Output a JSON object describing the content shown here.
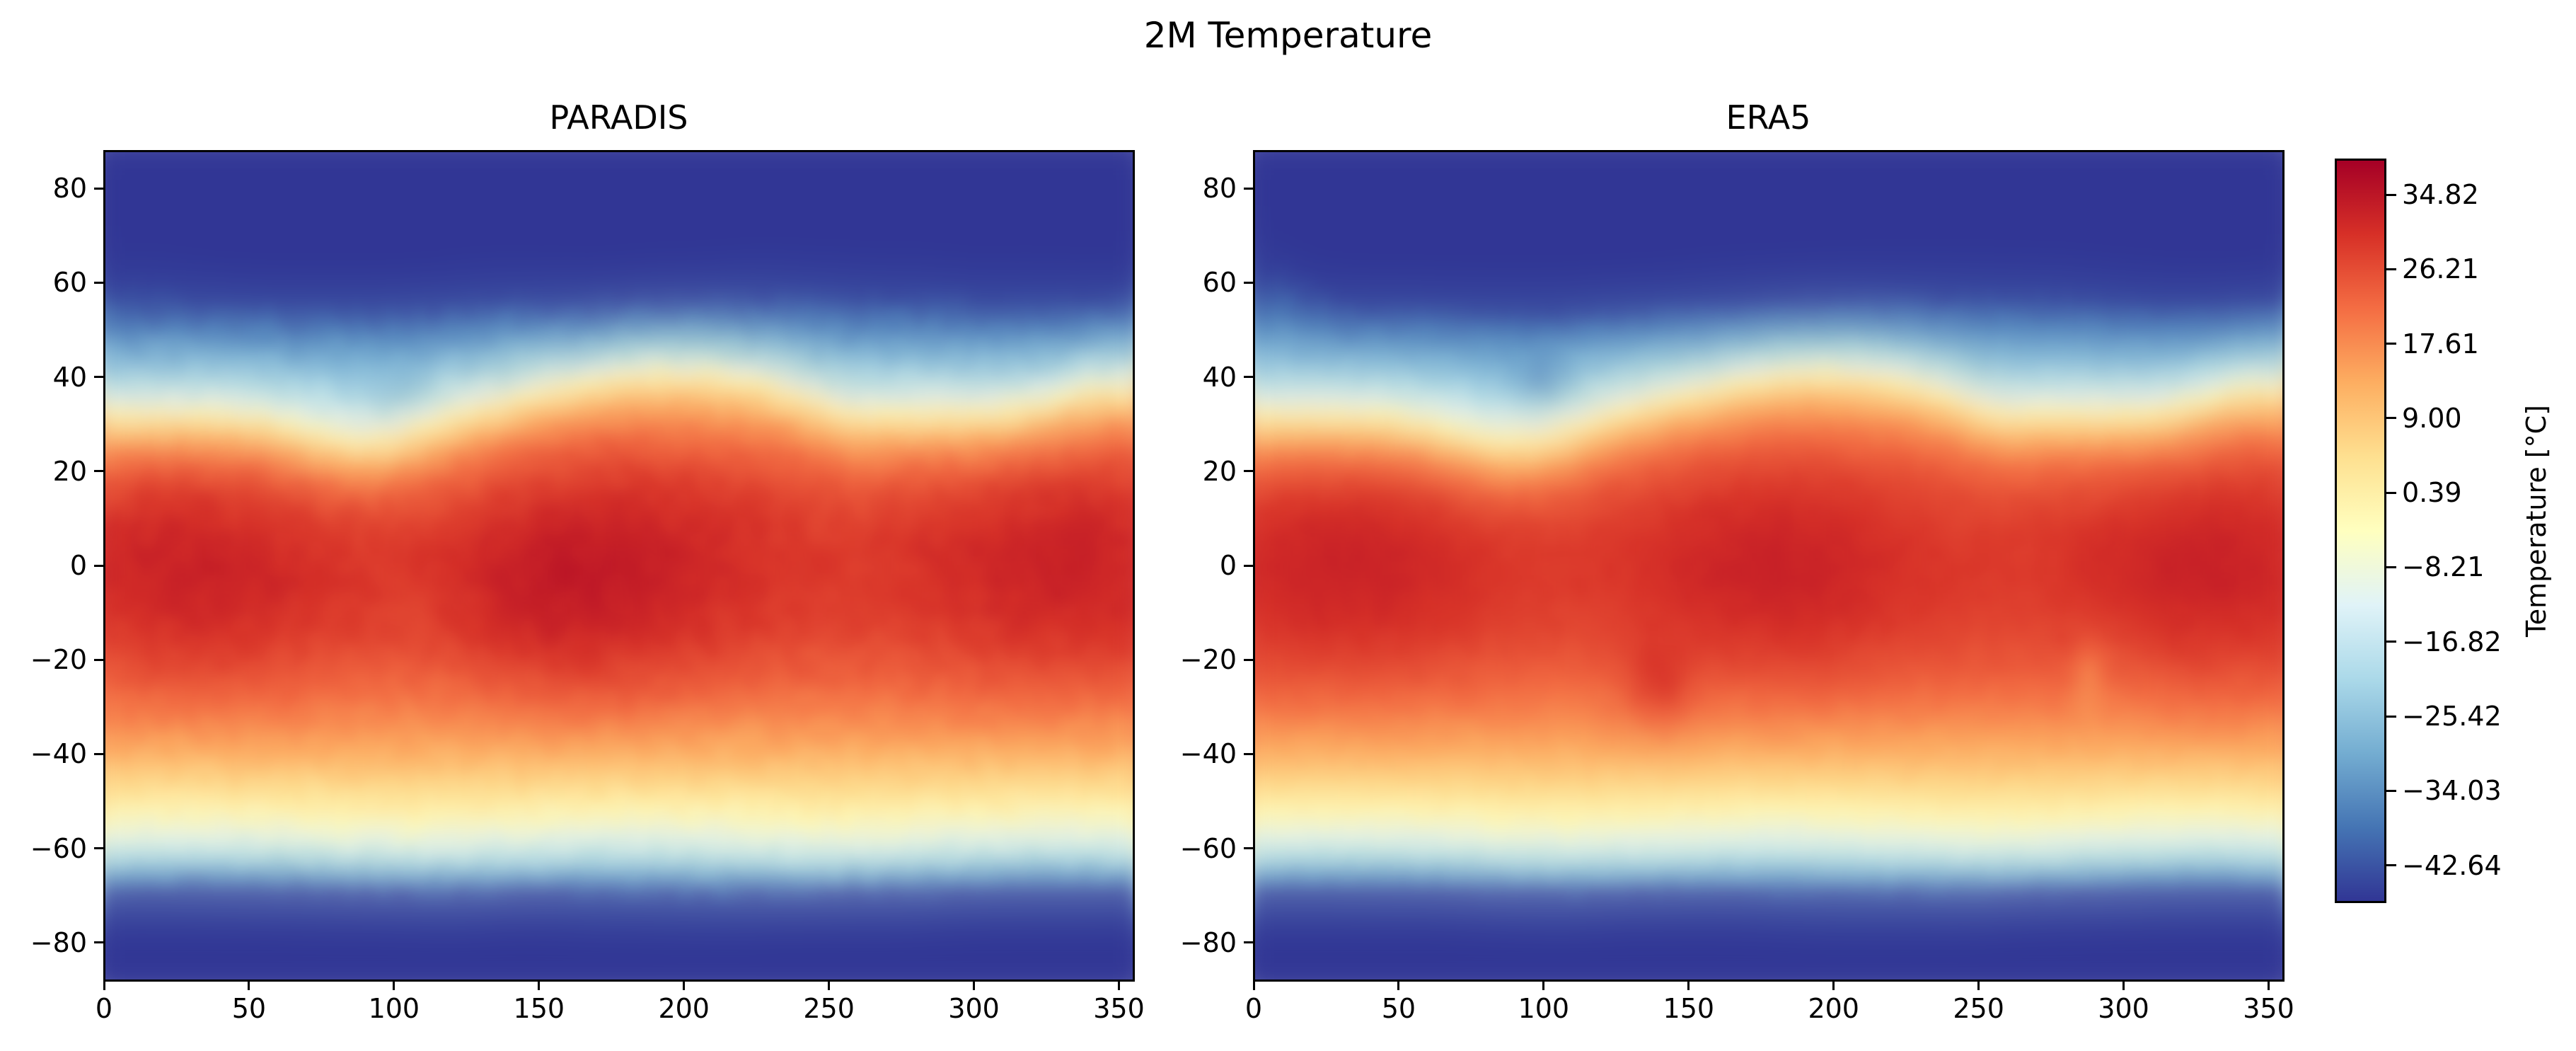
{
  "figure": {
    "suptitle": "2M Temperature"
  },
  "chart_data": [
    {
      "type": "heatmap",
      "title": "PARADIS",
      "xlabel": "",
      "ylabel": "",
      "xlim": [
        0,
        355
      ],
      "ylim": [
        -88,
        88
      ],
      "xticks": [
        0,
        50,
        100,
        150,
        200,
        250,
        300,
        350
      ],
      "yticks": [
        -80,
        -60,
        -40,
        -20,
        0,
        20,
        40,
        60,
        80
      ],
      "colormap": "RdYlBu_r",
      "value_range": [
        -47,
        39
      ],
      "grid": false
    },
    {
      "type": "heatmap",
      "title": "ERA5",
      "xlabel": "",
      "ylabel": "",
      "xlim": [
        0,
        355
      ],
      "ylim": [
        -88,
        88
      ],
      "xticks": [
        0,
        50,
        100,
        150,
        200,
        250,
        300,
        350
      ],
      "yticks": [
        -80,
        -60,
        -40,
        -20,
        0,
        20,
        40,
        60,
        80
      ],
      "colormap": "RdYlBu_r",
      "value_range": [
        -47,
        39
      ],
      "grid": false
    }
  ],
  "colorbar": {
    "label": "Temperature [°C]",
    "ticks": [
      "-42.64",
      "-34.03",
      "-25.42",
      "-16.82",
      "-8.21",
      "0.39",
      "9.00",
      "17.61",
      "26.21",
      "34.82"
    ],
    "tick_values": [
      -42.64,
      -34.03,
      -25.42,
      -16.82,
      -8.21,
      0.39,
      9.0,
      17.61,
      26.21,
      34.82
    ],
    "range": [
      -47,
      39
    ],
    "colors": [
      "#313695",
      "#4575b4",
      "#74add1",
      "#abd9e9",
      "#e0f3f8",
      "#ffffbf",
      "#fee090",
      "#fdae61",
      "#f46d43",
      "#d73027",
      "#a50026"
    ]
  }
}
